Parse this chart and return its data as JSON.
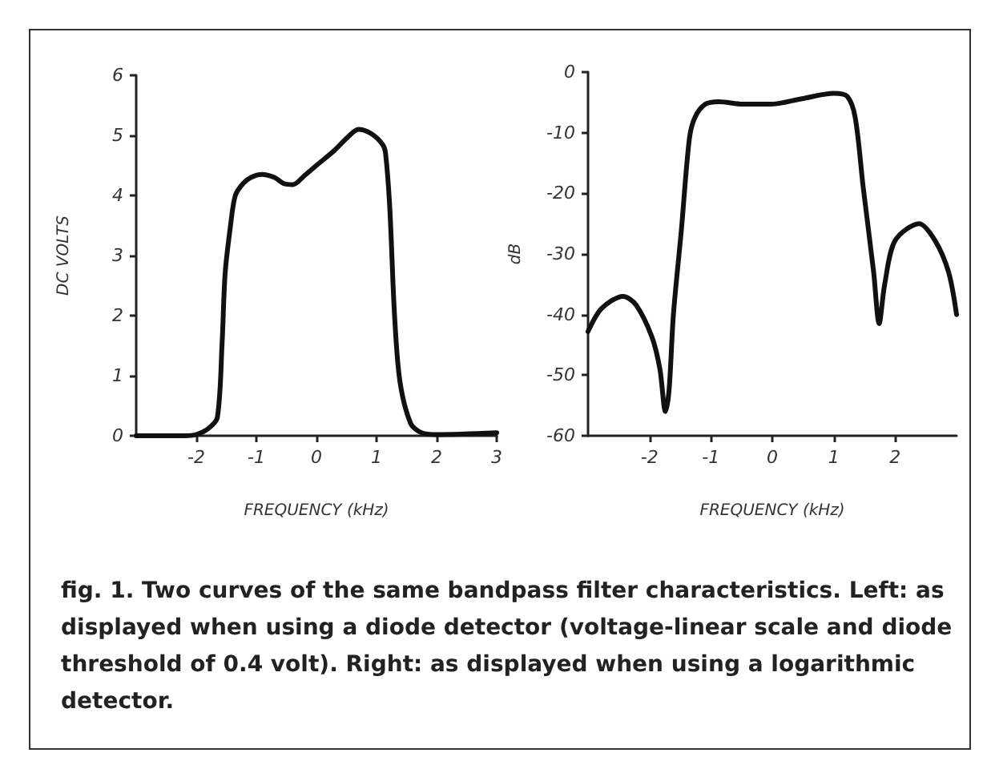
{
  "chart_data": [
    {
      "type": "line",
      "xlabel": "FREQUENCY (kHz)",
      "ylabel": "DC VOLTS",
      "xlim": [
        -3,
        3
      ],
      "ylim": [
        0,
        6
      ],
      "xticks": [
        -2,
        -1,
        0,
        1,
        2,
        3
      ],
      "yticks": [
        0,
        1,
        2,
        3,
        4,
        5,
        6
      ],
      "grid": false,
      "marker": "none",
      "line_style": "solid",
      "series": [
        {
          "color": "#111111",
          "x": [
            -3,
            -2.2,
            -2,
            -1.8,
            -1.65,
            -1.57,
            -1.52,
            -1.43,
            -1.35,
            -1.22,
            -1.09,
            -0.91,
            -0.7,
            -0.55,
            -0.39,
            -0.2,
            0,
            0.3,
            0.5,
            0.7,
            0.91,
            1.1,
            1.15,
            1.22,
            1.3,
            1.39,
            1.57,
            1.75,
            2,
            3
          ],
          "values": [
            0,
            0,
            0.02,
            0.12,
            0.3,
            1.55,
            2.7,
            3.5,
            4.0,
            4.2,
            4.3,
            4.35,
            4.3,
            4.2,
            4.18,
            4.33,
            4.5,
            4.75,
            4.95,
            5.1,
            5.03,
            4.85,
            4.7,
            3.8,
            2.0,
            0.9,
            0.2,
            0.05,
            0.02,
            0.05
          ]
        }
      ],
      "annotations": [
        "fig. 1. Two curves of the same bandpass filter characteristics. Left: as displayed when using a diode detector (voltage-linear scale and diode threshold of 0.4 volt). Right: as displayed when using a logarithmic detector."
      ]
    },
    {
      "type": "line",
      "xlabel": "FREQUENCY (kHz)",
      "ylabel": "dB",
      "xlim": [
        -3,
        3
      ],
      "ylim": [
        -60,
        0
      ],
      "xticks": [
        -2,
        -1,
        0,
        1,
        2
      ],
      "yticks": [
        -60,
        -50,
        -40,
        -30,
        -20,
        -10,
        0
      ],
      "grid": false,
      "marker": "none",
      "line_style": "solid",
      "series": [
        {
          "color": "#111111",
          "x": [
            -3,
            -2.78,
            -2.43,
            -2.22,
            -1.96,
            -1.83,
            -1.74,
            -1.68,
            -1.61,
            -1.48,
            -1.35,
            -1.26,
            -1.09,
            -0.87,
            -0.48,
            -0.04,
            0.48,
            1.0,
            1.22,
            1.35,
            1.48,
            1.65,
            1.74,
            1.83,
            2.0,
            2.39,
            2.65,
            2.87,
            3.0
          ],
          "values": [
            -42.8,
            -39,
            -37,
            -38.4,
            -43.7,
            -49,
            -56,
            -52.4,
            -40,
            -26,
            -11,
            -7.5,
            -5.3,
            -4.9,
            -5.3,
            -5.3,
            -4.4,
            -3.5,
            -4,
            -7.5,
            -19,
            -33,
            -41.5,
            -35,
            -27.8,
            -25,
            -27.8,
            -33,
            -40
          ]
        }
      ]
    }
  ]
}
